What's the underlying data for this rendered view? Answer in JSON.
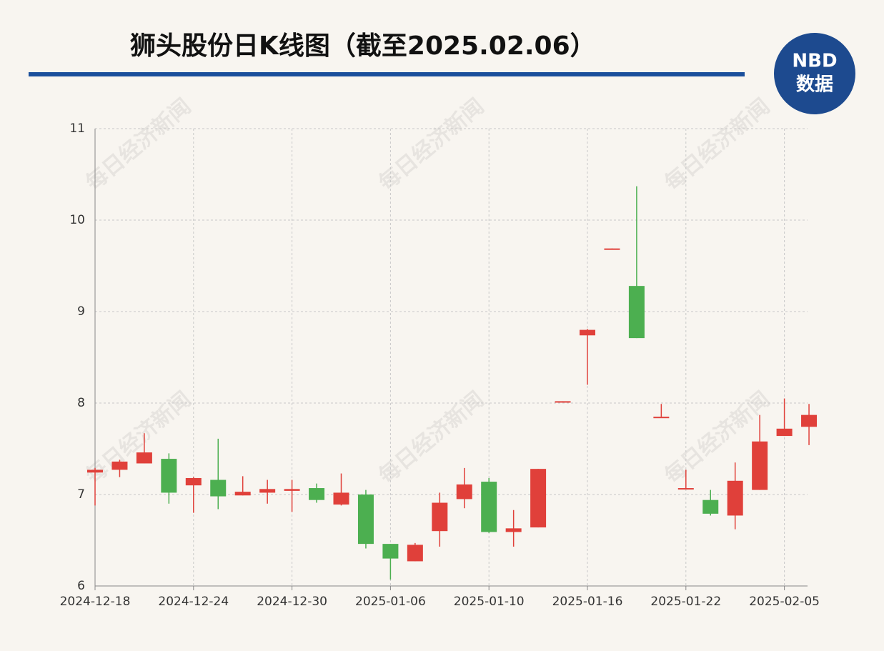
{
  "chart_data": {
    "type": "candlestick",
    "title": "狮头股份日K线图（截至2025.02.06）",
    "logo": {
      "top": "NBD",
      "bottom": "数据"
    },
    "watermark": "每日经济新闻",
    "categories": [
      "2024-12-18",
      null,
      null,
      null,
      "2024-12-24",
      null,
      null,
      null,
      "2024-12-30",
      null,
      null,
      null,
      "2025-01-06",
      null,
      null,
      null,
      "2025-01-10",
      null,
      null,
      null,
      "2025-01-16",
      null,
      null,
      null,
      "2025-01-22",
      null,
      null,
      null,
      "2025-02-05",
      null
    ],
    "open": [
      7.24,
      7.27,
      7.34,
      7.39,
      7.1,
      7.16,
      6.99,
      7.02,
      7.04,
      7.07,
      6.89,
      7.0,
      6.46,
      6.27,
      6.6,
      6.95,
      7.14,
      6.59,
      6.64,
      8.01,
      8.74,
      9.68,
      9.28,
      7.85,
      7.07,
      6.94,
      6.77,
      7.05,
      7.64,
      7.74
    ],
    "high": [
      7.29,
      7.38,
      7.67,
      7.45,
      7.19,
      7.61,
      7.2,
      7.16,
      7.16,
      7.12,
      7.23,
      7.05,
      6.46,
      6.47,
      7.02,
      7.29,
      7.18,
      6.83,
      7.28,
      8.02,
      8.81,
      9.69,
      10.37,
      7.99,
      7.27,
      7.05,
      7.35,
      7.87,
      8.05,
      7.99
    ],
    "low": [
      6.88,
      7.19,
      7.34,
      6.9,
      6.8,
      6.84,
      6.99,
      6.9,
      6.81,
      6.91,
      6.88,
      6.41,
      6.07,
      6.27,
      6.43,
      6.85,
      6.58,
      6.43,
      6.64,
      8.01,
      8.2,
      9.68,
      8.71,
      7.85,
      7.06,
      6.77,
      6.62,
      7.05,
      7.64,
      7.54
    ],
    "close": [
      7.27,
      7.36,
      7.46,
      7.02,
      7.18,
      6.98,
      7.03,
      7.06,
      7.06,
      6.94,
      7.02,
      6.46,
      6.3,
      6.45,
      6.91,
      7.11,
      6.59,
      6.63,
      7.28,
      8.02,
      8.8,
      9.69,
      8.71,
      7.85,
      7.07,
      6.79,
      7.15,
      7.58,
      7.72,
      7.87
    ],
    "up_color": "#e0403a",
    "down_color": "#4caf50",
    "ylim": [
      6,
      11
    ],
    "yticks": [
      6,
      7,
      8,
      9,
      10,
      11
    ],
    "grid": true
  }
}
